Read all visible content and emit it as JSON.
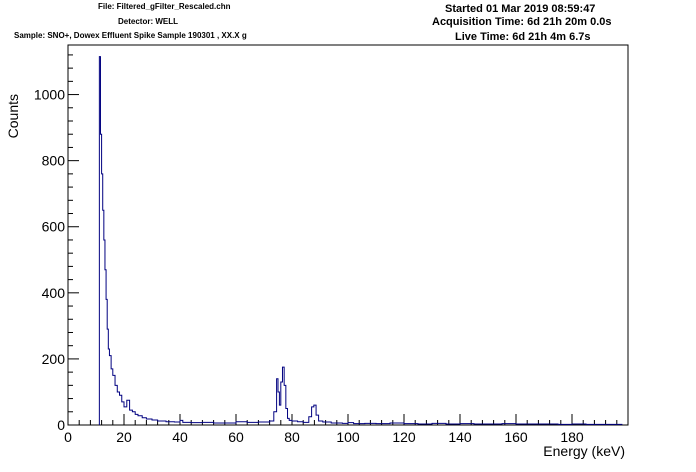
{
  "header": {
    "file": "File: Filtered_gFilter_Rescaled.chn",
    "detector": "Detector: WELL",
    "sample": "Sample: SNO+, Dowex Effluent Spike Sample 190301 , XX.X g",
    "started": "Started 01 Mar 2019 08:59:47",
    "acquisition": "Acquisition Time: 6d 21h 20m 0.0s",
    "live": "Live Time: 6d 21h 4m 6.7s"
  },
  "chart_data": {
    "type": "line",
    "title": "",
    "xlabel": "Energy (keV)",
    "ylabel": "Counts",
    "xlim": [
      0,
      200
    ],
    "ylim": [
      0,
      1150
    ],
    "x_ticks": [
      0,
      20,
      40,
      60,
      80,
      100,
      120,
      140,
      160,
      180
    ],
    "y_ticks": [
      0,
      200,
      400,
      600,
      800,
      1000
    ],
    "grid": false,
    "legend": "none",
    "line_color": "#000080",
    "series": [
      {
        "x": [
          11.2,
          11.6,
          12.0,
          12.4,
          12.8,
          13.2,
          13.6,
          14.0,
          14.4,
          14.8,
          15.4,
          16.0,
          16.8,
          17.6,
          18.4,
          19.2,
          20.0,
          21.0,
          22.0,
          23.0,
          24.0,
          25.0,
          26.5,
          28.0,
          30.0,
          32.0,
          35.0,
          38.0,
          40.0,
          41.0,
          44.0,
          48.0,
          52.0,
          56.0,
          60.0,
          64.0,
          68.0,
          72.0,
          73.5,
          74.5,
          75.0,
          75.5,
          76.0,
          76.6,
          77.2,
          77.8,
          78.4,
          79.0,
          80.0,
          82.0,
          84.0,
          86.0,
          87.0,
          87.8,
          88.6,
          89.5,
          91.0,
          94.0,
          98.0,
          100.0,
          102.0,
          106.0,
          110.0,
          115.0,
          120.0,
          125.0,
          130.0,
          135.0,
          140.0,
          145.0,
          150.0,
          155.0,
          160.0,
          165.0,
          170.0,
          175.0,
          180.0,
          185.0,
          190.0,
          195.0,
          198.0
        ],
        "y": [
          1115,
          880,
          760,
          650,
          560,
          470,
          380,
          290,
          230,
          210,
          170,
          150,
          120,
          100,
          90,
          70,
          55,
          75,
          45,
          40,
          32,
          28,
          22,
          18,
          15,
          12,
          10,
          9,
          14,
          8,
          7,
          8,
          6,
          6,
          10,
          8,
          9,
          12,
          40,
          140,
          100,
          60,
          130,
          175,
          120,
          50,
          20,
          14,
          12,
          10,
          8,
          25,
          55,
          60,
          30,
          12,
          9,
          6,
          5,
          7,
          4,
          5,
          4,
          6,
          4,
          3,
          5,
          3,
          4,
          3,
          3,
          4,
          3,
          3,
          3,
          2,
          3,
          2,
          2,
          2,
          2
        ]
      }
    ]
  }
}
